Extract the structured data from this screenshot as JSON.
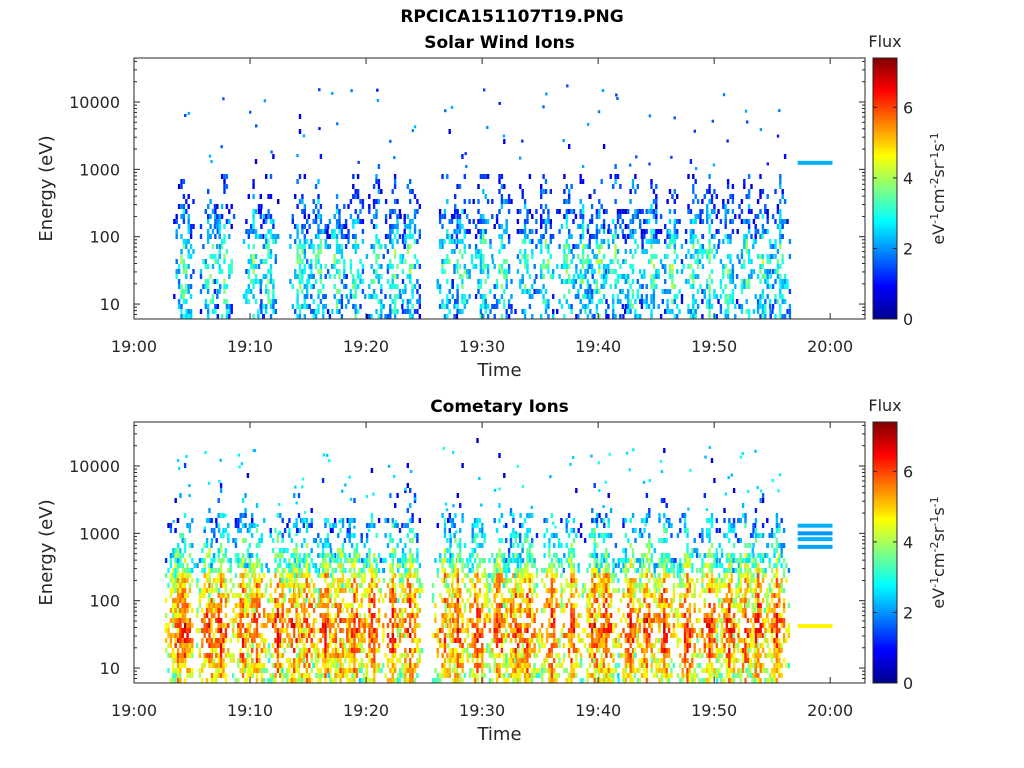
{
  "figure": {
    "title_line1": "RPCICA151107T19.PNG",
    "colormap": [
      "#00008f",
      "#0000ff",
      "#0080ff",
      "#00ffff",
      "#80ff80",
      "#ffff00",
      "#ff8000",
      "#ff0000",
      "#800000"
    ]
  },
  "chart_data": [
    {
      "type": "heatmap",
      "title": "Solar Wind Ions",
      "xlabel": "Time",
      "ylabel": "Energy (eV)",
      "x_ticks": [
        "19:00",
        "19:10",
        "19:20",
        "19:30",
        "19:40",
        "19:50",
        "20:00"
      ],
      "x_range_minutes": [
        0,
        63
      ],
      "y_scale": "log",
      "y_ticks": [
        "10",
        "100",
        "1000",
        "10000"
      ],
      "y_range": [
        6,
        45000
      ],
      "colorbar": {
        "label_top": "Flux",
        "unit": "eV-1cm-2sr-1s-1",
        "ticks": [
          "0",
          "2",
          "4",
          "6"
        ],
        "range": [
          0,
          7.4
        ]
      },
      "bursts_minutes": [
        4.2,
        6.5,
        7.7,
        10.2,
        11.5,
        14.2,
        15.8,
        17.4,
        19.0,
        20.8,
        22.4,
        23.7,
        26.9,
        28.2,
        30.0,
        31.6,
        33.6,
        35.4,
        37.2,
        38.6,
        40.0,
        41.4,
        42.9,
        44.5,
        46.3,
        48.1,
        49.5,
        51.1,
        52.7,
        54.1,
        55.6
      ],
      "peak_flux": 3.5,
      "artifact": {
        "minute_range": [
          57.2,
          60.2
        ],
        "energy_ev": 1250,
        "flux": 2.2
      }
    },
    {
      "type": "heatmap",
      "title": "Cometary Ions",
      "xlabel": "Time",
      "ylabel": "Energy (eV)",
      "x_ticks": [
        "19:00",
        "19:10",
        "19:20",
        "19:30",
        "19:40",
        "19:50",
        "20:00"
      ],
      "x_range_minutes": [
        0,
        63
      ],
      "y_scale": "log",
      "y_ticks": [
        "10",
        "100",
        "1000",
        "10000"
      ],
      "y_range": [
        6,
        45000
      ],
      "colorbar": {
        "label_top": "Flux",
        "unit": "eV-1cm-2sr-1s-1",
        "ticks": [
          "0",
          "2",
          "4",
          "6"
        ],
        "range": [
          0,
          7.4
        ]
      },
      "bursts_minutes": [
        3.7,
        4.3,
        6.4,
        7.4,
        9.3,
        10.5,
        12.3,
        13.7,
        14.8,
        16.4,
        17.7,
        18.9,
        20.4,
        22.2,
        23.7,
        26.7,
        27.8,
        29.5,
        31.4,
        32.8,
        33.8,
        35.9,
        37.6,
        39.6,
        40.6,
        42.7,
        44.1,
        45.6,
        47.6,
        49.5,
        51.2,
        52.6,
        53.7,
        55.3
      ],
      "peak_flux": 6.3,
      "artifact_lines": [
        {
          "minute_range": [
            57.2,
            60.2
          ],
          "energy_ev": 1300,
          "flux": 2.2
        },
        {
          "minute_range": [
            57.2,
            60.2
          ],
          "energy_ev": 1000,
          "flux": 2.0
        },
        {
          "minute_range": [
            57.2,
            60.2
          ],
          "energy_ev": 820,
          "flux": 2.2
        },
        {
          "minute_range": [
            57.2,
            60.2
          ],
          "energy_ev": 630,
          "flux": 2.1
        },
        {
          "minute_range": [
            57.2,
            60.2
          ],
          "energy_ev": 42,
          "flux": 4.7
        }
      ]
    }
  ]
}
